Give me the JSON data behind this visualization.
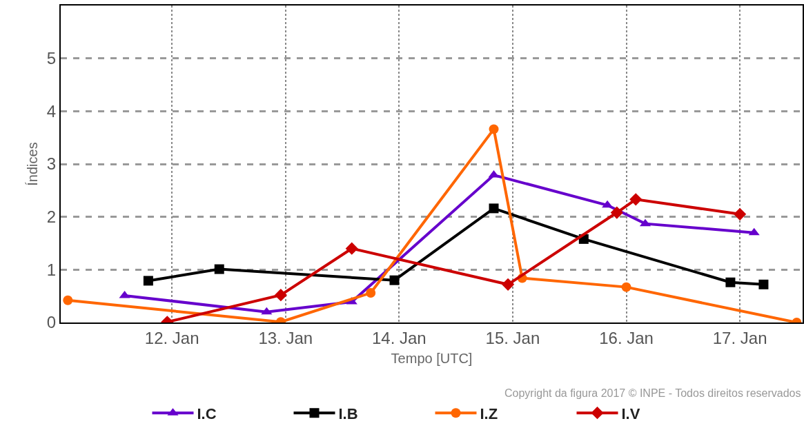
{
  "chart_data": {
    "type": "line",
    "xlabel": "Tempo [UTC]",
    "ylabel": "Índices",
    "xlim": [
      "--01-11T00:30",
      "--01-17T13:15"
    ],
    "xticks": [
      {
        "value": "--01-12",
        "label": "12. Jan"
      },
      {
        "value": "--01-13",
        "label": "13. Jan"
      },
      {
        "value": "--01-14",
        "label": "14. Jan"
      },
      {
        "value": "--01-15",
        "label": "15. Jan"
      },
      {
        "value": "--01-16",
        "label": "16. Jan"
      },
      {
        "value": "--01-17",
        "label": "17. Jan"
      }
    ],
    "ylim": [
      0,
      6
    ],
    "yticks": [
      0,
      1,
      2,
      3,
      4,
      5
    ],
    "grid": true,
    "legend": "bottom",
    "annotations": [
      "Copyright da figura 2017 © INPE - Todos direitos reservados"
    ],
    "series": [
      {
        "name": "I.C",
        "color": "#6600cc",
        "marker": "triangle",
        "x": [
          "--01-11T14:00",
          "--01-12T20:00",
          "--01-13T14:00",
          "--01-14T20:00",
          "--01-15T20:00",
          "--01-16T04:00",
          "--01-17T03:00"
        ],
        "values": [
          0.51,
          0.2,
          0.39,
          2.79,
          2.22,
          1.87,
          1.7
        ]
      },
      {
        "name": "I.B",
        "color": "#000000",
        "marker": "square",
        "x": [
          "--01-11T19:00",
          "--01-12T10:00",
          "--01-13T23:00",
          "--01-14T20:00",
          "--01-15T15:00",
          "--01-16T22:00",
          "--01-17T05:00"
        ],
        "values": [
          0.79,
          1.01,
          0.8,
          2.16,
          1.58,
          0.76,
          0.72
        ]
      },
      {
        "name": "I.Z",
        "color": "#ff6600",
        "marker": "circle",
        "x": [
          "--01-11T02:00",
          "--01-12T23:00",
          "--01-13T18:00",
          "--01-14T20:00",
          "--01-15T02:00",
          "--01-16T00:00",
          "--01-17T12:00"
        ],
        "values": [
          0.42,
          0.01,
          0.56,
          3.66,
          0.84,
          0.67,
          0.0
        ]
      },
      {
        "name": "I.V",
        "color": "#cc0000",
        "marker": "diamond",
        "x": [
          "--01-11T23:00",
          "--01-12T23:00",
          "--01-13T14:00",
          "--01-14T23:00",
          "--01-15T22:00",
          "--01-16T02:00",
          "--01-17T00:00"
        ],
        "values": [
          0.01,
          0.52,
          1.4,
          0.72,
          2.08,
          2.33,
          2.05
        ]
      }
    ]
  }
}
